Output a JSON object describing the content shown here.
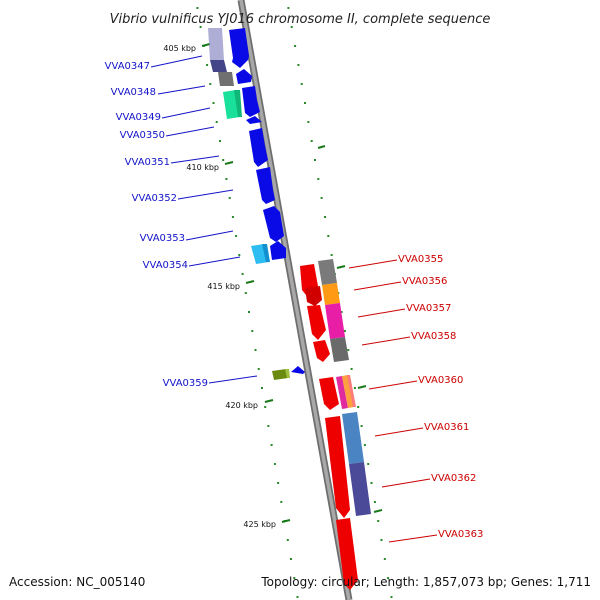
{
  "title": "Vibrio vulnificus YJ016 chromosome II, complete sequence",
  "footer": {
    "accession": "Accession: NC_005140",
    "summary": "Topology: circular; Length: 1,857,073 bp; Genes: 1,711"
  },
  "colors": {
    "left_label": "#1414c8",
    "right_label": "#cc0000",
    "backbone": "#8c8c8c",
    "tick": "#1a7a1a"
  },
  "ticks": [
    {
      "label": "405 kbp"
    },
    {
      "label": "410 kbp"
    },
    {
      "label": "415 kbp"
    },
    {
      "label": "420 kbp"
    },
    {
      "label": "425 kbp"
    }
  ],
  "left_genes": [
    {
      "label": "VVA0347"
    },
    {
      "label": "VVA0348"
    },
    {
      "label": "VVA0349"
    },
    {
      "label": "VVA0350"
    },
    {
      "label": "VVA0351"
    },
    {
      "label": "VVA0352"
    },
    {
      "label": "VVA0353"
    },
    {
      "label": "VVA0354"
    },
    {
      "label": "VVA0359"
    }
  ],
  "right_genes": [
    {
      "label": "VVA0355"
    },
    {
      "label": "VVA0356"
    },
    {
      "label": "VVA0357"
    },
    {
      "label": "VVA0358"
    },
    {
      "label": "VVA0360"
    },
    {
      "label": "VVA0361"
    },
    {
      "label": "VVA0362"
    },
    {
      "label": "VVA0363"
    }
  ]
}
